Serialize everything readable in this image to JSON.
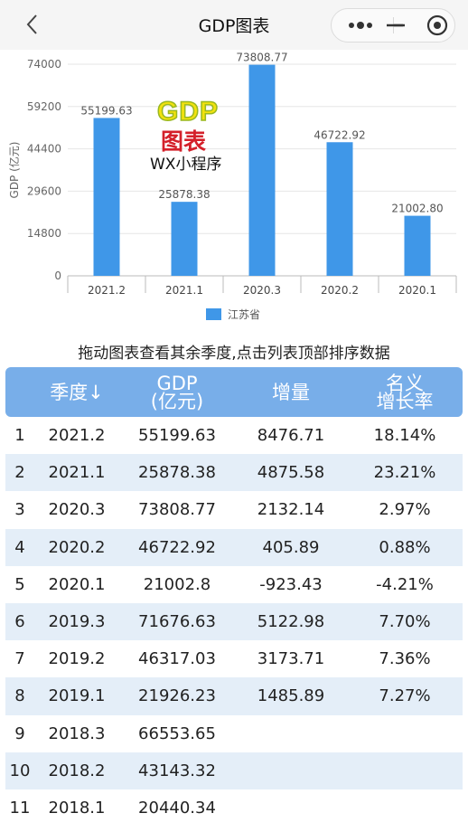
{
  "navbar": {
    "title": "GDP图表",
    "back_icon": "chevron-left-icon",
    "more_icon": "more-dots-icon",
    "minimize_icon": "minus-icon",
    "close_icon": "target-circle-icon"
  },
  "logo": {
    "gdp": "GDP",
    "cn": "图表",
    "wx": "WX小程序"
  },
  "chart_data": {
    "type": "bar",
    "categories": [
      "2021.2",
      "2021.1",
      "2020.3",
      "2020.2",
      "2020.1"
    ],
    "series": [
      {
        "name": "江苏省",
        "values": [
          55199.63,
          25878.38,
          73808.77,
          46722.92,
          21002.8
        ],
        "color": "#3f97e8"
      }
    ],
    "data_labels": [
      "55199.63",
      "25878.38",
      "73808.77",
      "46722.92",
      "21002.80"
    ],
    "title": "",
    "xlabel": "",
    "ylabel": "GDP (亿元)",
    "ylim": [
      0,
      74000
    ],
    "yticks": [
      0,
      14800,
      29600,
      44400,
      59200,
      74000
    ],
    "legend_position": "bottom",
    "grid": true
  },
  "hint": "拖动图表查看其余季度,点击列表顶部排序数据",
  "table": {
    "headers": {
      "quarter": "季度↓",
      "gdp": "GDP\n(亿元)",
      "increase": "增量",
      "growth": "名义\n增长率"
    },
    "rows": [
      {
        "idx": "1",
        "quarter": "2021.2",
        "gdp": "55199.63",
        "increase": "8476.71",
        "growth": "18.14%"
      },
      {
        "idx": "2",
        "quarter": "2021.1",
        "gdp": "25878.38",
        "increase": "4875.58",
        "growth": "23.21%"
      },
      {
        "idx": "3",
        "quarter": "2020.3",
        "gdp": "73808.77",
        "increase": "2132.14",
        "growth": "2.97%"
      },
      {
        "idx": "4",
        "quarter": "2020.2",
        "gdp": "46722.92",
        "increase": "405.89",
        "growth": "0.88%"
      },
      {
        "idx": "5",
        "quarter": "2020.1",
        "gdp": "21002.8",
        "increase": "-923.43",
        "growth": "-4.21%"
      },
      {
        "idx": "6",
        "quarter": "2019.3",
        "gdp": "71676.63",
        "increase": "5122.98",
        "growth": "7.70%"
      },
      {
        "idx": "7",
        "quarter": "2019.2",
        "gdp": "46317.03",
        "increase": "3173.71",
        "growth": "7.36%"
      },
      {
        "idx": "8",
        "quarter": "2019.1",
        "gdp": "21926.23",
        "increase": "1485.89",
        "growth": "7.27%"
      },
      {
        "idx": "9",
        "quarter": "2018.3",
        "gdp": "66553.65",
        "increase": "",
        "growth": ""
      },
      {
        "idx": "10",
        "quarter": "2018.2",
        "gdp": "43143.32",
        "increase": "",
        "growth": ""
      },
      {
        "idx": "11",
        "quarter": "2018.1",
        "gdp": "20440.34",
        "increase": "",
        "growth": ""
      }
    ]
  }
}
